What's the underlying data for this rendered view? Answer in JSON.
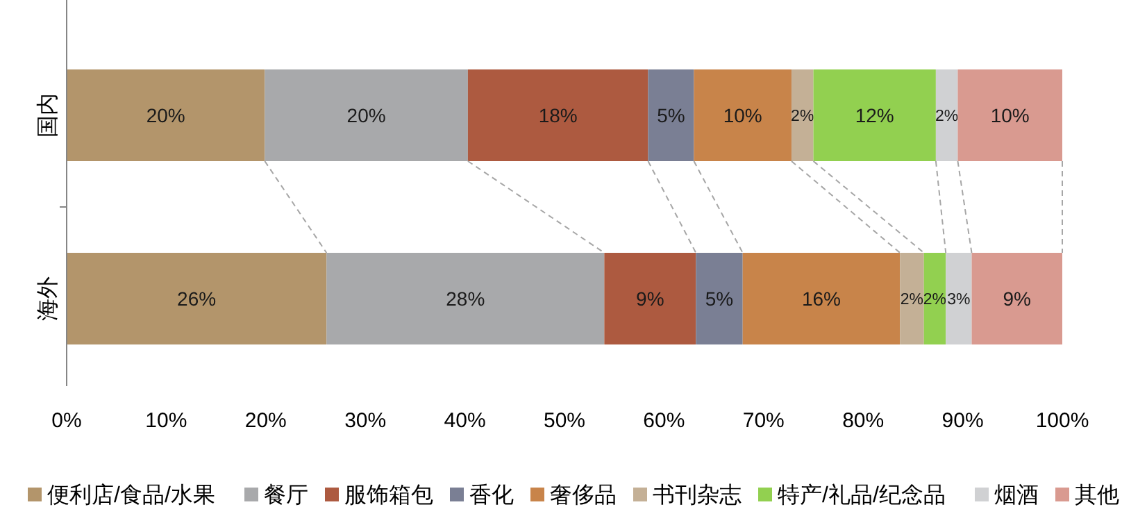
{
  "chart_data": {
    "type": "bar",
    "orientation": "horizontal",
    "stacked": true,
    "categories": [
      "国内",
      "海外"
    ],
    "xlim": [
      0,
      100
    ],
    "xticks": [
      {
        "value": 0,
        "label": "0%"
      },
      {
        "value": 10,
        "label": "10%"
      },
      {
        "value": 20,
        "label": "20%"
      },
      {
        "value": 30,
        "label": "30%"
      },
      {
        "value": 40,
        "label": "40%"
      },
      {
        "value": 50,
        "label": "50%"
      },
      {
        "value": 60,
        "label": "60%"
      },
      {
        "value": 70,
        "label": "70%"
      },
      {
        "value": 80,
        "label": "80%"
      },
      {
        "value": 90,
        "label": "90%"
      },
      {
        "value": 100,
        "label": "100%"
      }
    ],
    "legend": "bottom",
    "grid": false,
    "series": [
      {
        "name": "便利店/食品/水果",
        "color": "#b3956b",
        "values": [
          19.9,
          26.1
        ],
        "value_labels": [
          "20%",
          "26%"
        ]
      },
      {
        "name": "餐厅",
        "color": "#a8a9ab",
        "values": [
          20.4,
          27.9
        ],
        "value_labels": [
          "20%",
          "28%"
        ]
      },
      {
        "name": "服饰箱包",
        "color": "#ad5a40",
        "values": [
          18.1,
          9.2
        ],
        "value_labels": [
          "18%",
          "9%"
        ]
      },
      {
        "name": "香化",
        "color": "#7a7f94",
        "values": [
          4.6,
          4.7
        ],
        "value_labels": [
          "5%",
          "5%"
        ]
      },
      {
        "name": "奢侈品",
        "color": "#c8844a",
        "values": [
          9.8,
          15.8
        ],
        "value_labels": [
          "10%",
          "16%"
        ]
      },
      {
        "name": "书刊杂志",
        "color": "#c4b096",
        "values": [
          2.2,
          2.4
        ],
        "value_labels": [
          "2%",
          "2%"
        ]
      },
      {
        "name": "特产/礼品/纪念品",
        "color": "#92d050",
        "values": [
          12.3,
          2.2
        ],
        "value_labels": [
          "12%",
          "2%"
        ]
      },
      {
        "name": "烟酒",
        "color": "#d0d1d3",
        "values": [
          2.2,
          2.6
        ],
        "value_labels": [
          "2%",
          "3%"
        ]
      },
      {
        "name": "其他",
        "color": "#d99a90",
        "values": [
          10.5,
          9.1
        ],
        "value_labels": [
          "10%",
          "9%"
        ]
      }
    ]
  }
}
